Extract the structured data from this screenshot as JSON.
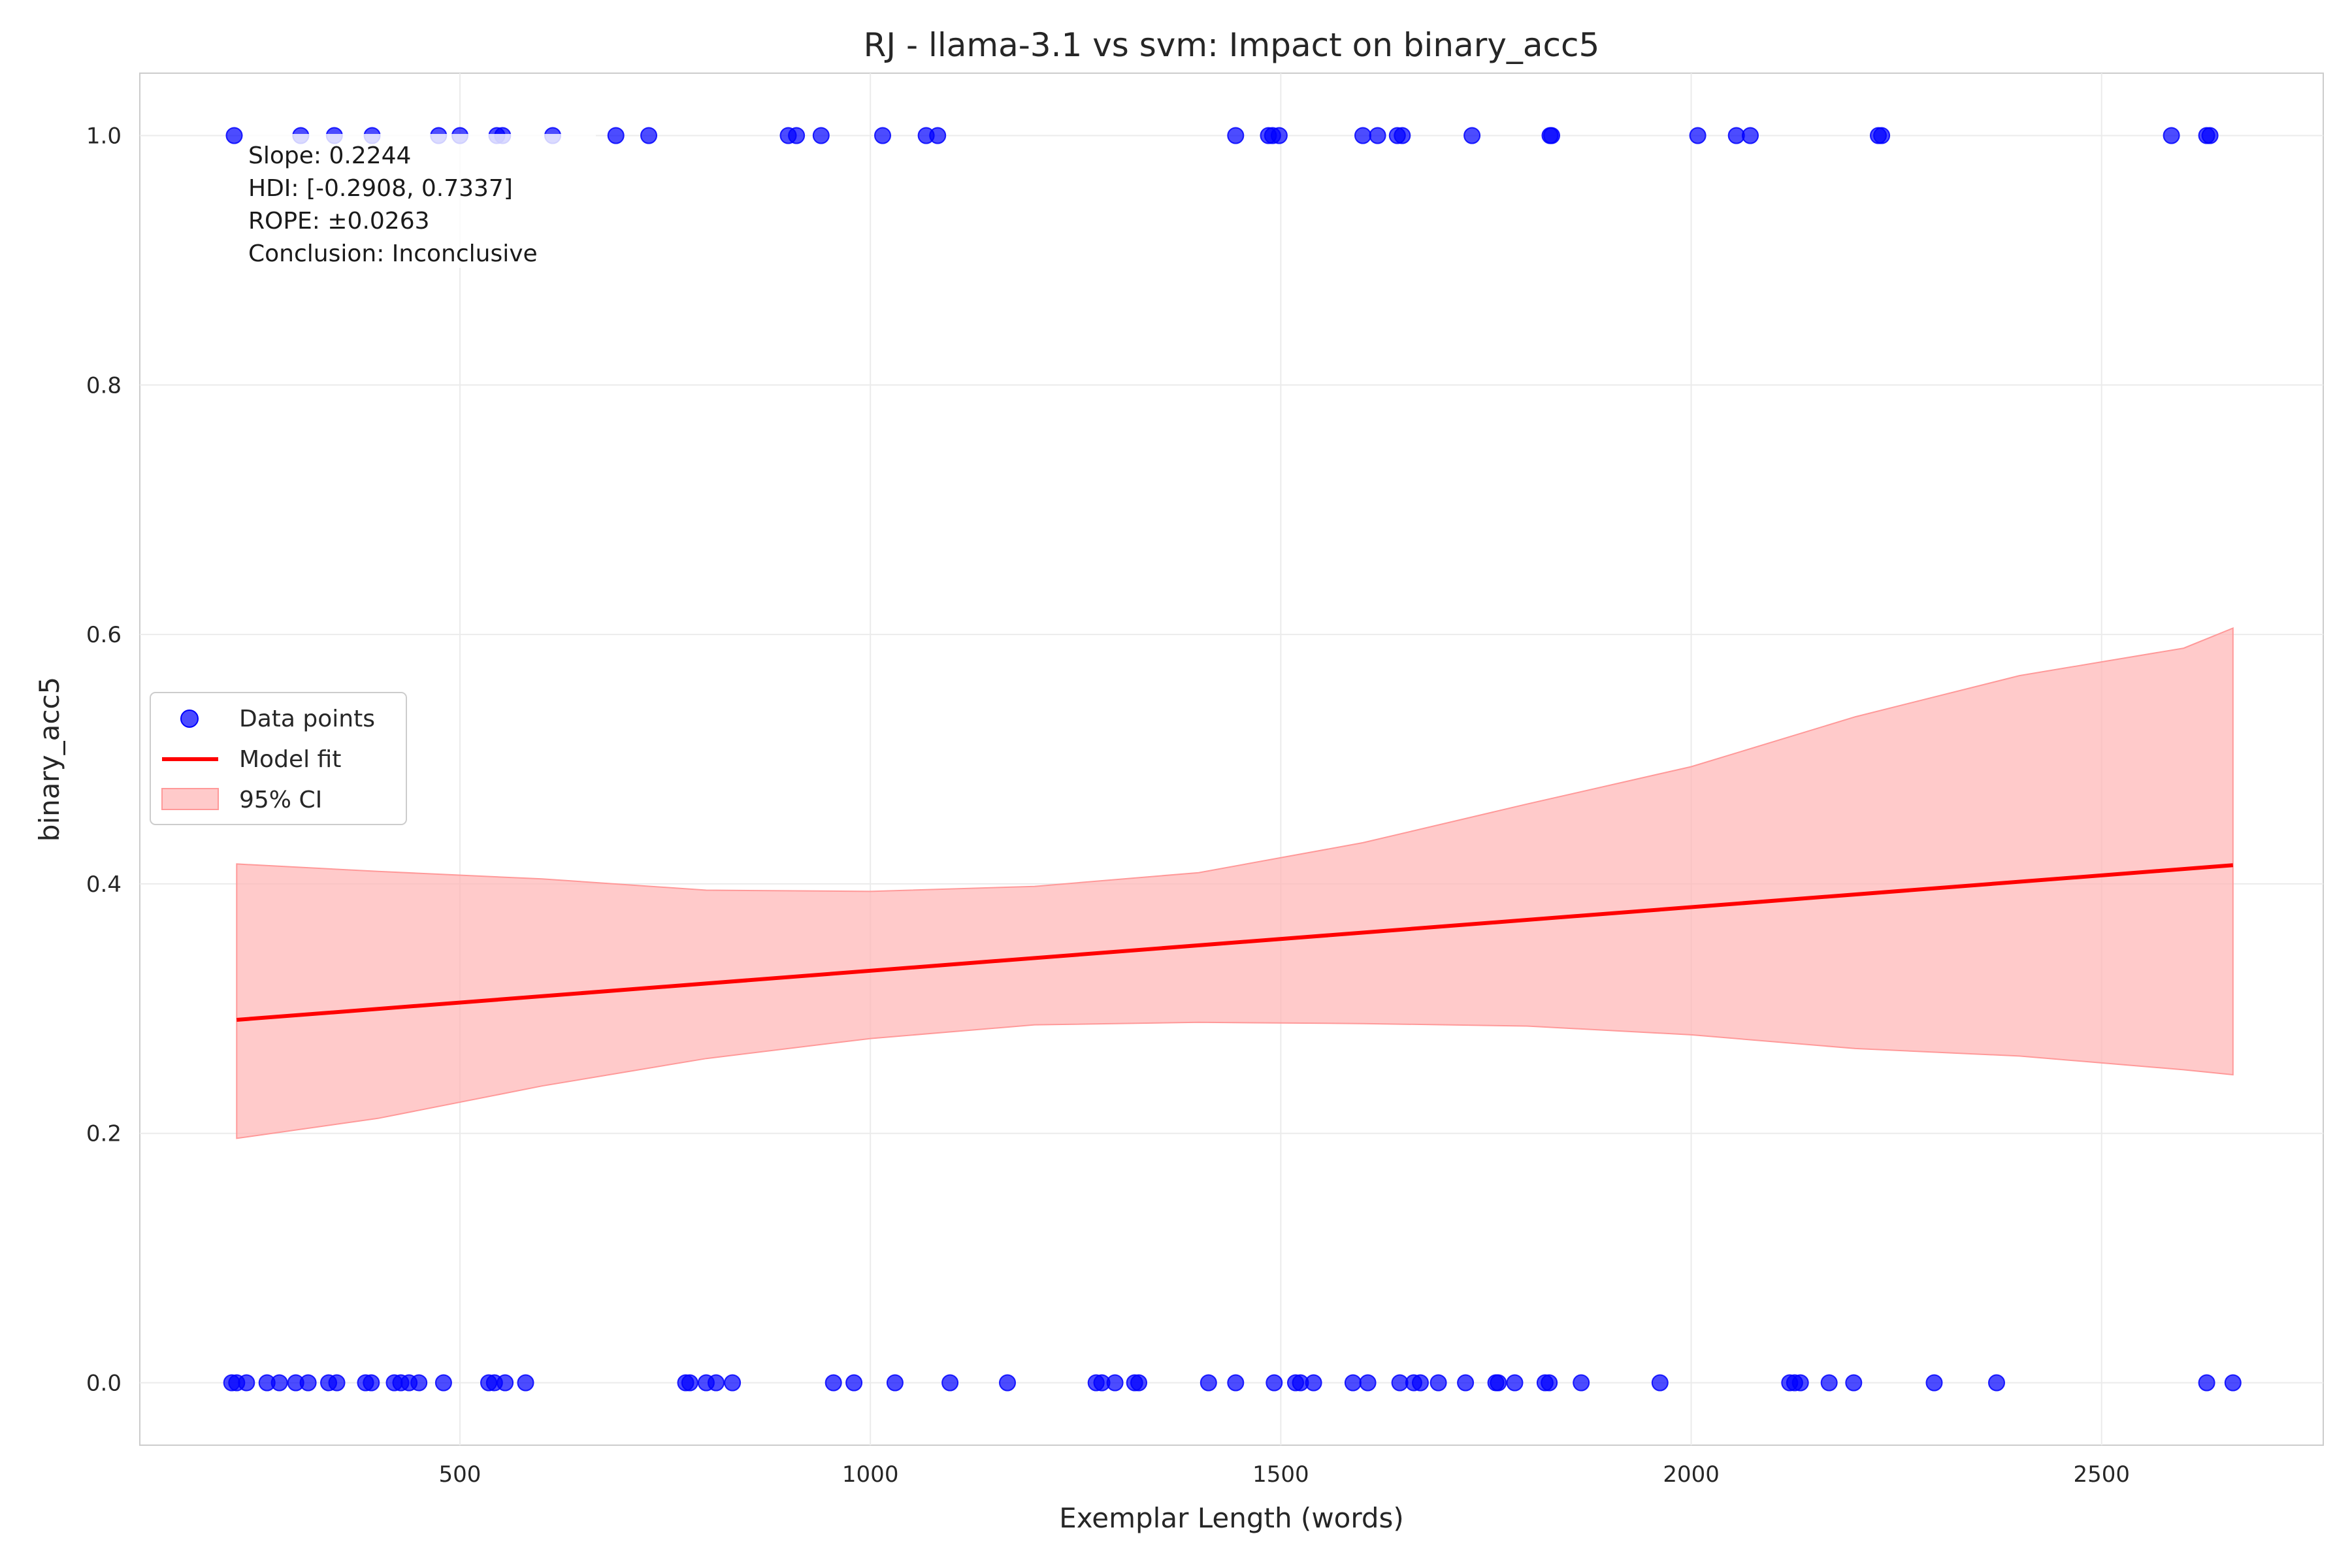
{
  "chart_data": {
    "type": "scatter",
    "title": "RJ - llama-3.1 vs svm: Impact on binary_acc5",
    "xlabel": "Exemplar Length (words)",
    "ylabel": "binary_acc5",
    "xlim": [
      110,
      2770
    ],
    "ylim": [
      -0.05,
      1.05
    ],
    "xticks": [
      500,
      1000,
      1500,
      2000,
      2500
    ],
    "yticks": [
      0.0,
      0.2,
      0.4,
      0.6,
      0.8,
      1.0
    ],
    "xtick_labels": [
      "500",
      "1000",
      "1500",
      "2000",
      "2500"
    ],
    "ytick_labels": [
      "0.0",
      "0.2",
      "0.4",
      "0.6",
      "0.8",
      "1.0"
    ],
    "grid": true,
    "legend_position": "center-left",
    "colors": {
      "points": "#0000ff",
      "fit": "#ff0000",
      "ci": "#ffb3b3"
    },
    "annotation": [
      "Slope: 0.2244",
      "HDI: [-0.2908, 0.7337]",
      "ROPE: ±0.0263",
      "Conclusion: Inconclusive"
    ],
    "series": [
      {
        "name": "Data points",
        "kind": "scatter",
        "points": [
          [
            225,
            1
          ],
          [
            306,
            1
          ],
          [
            347,
            1
          ],
          [
            393,
            1
          ],
          [
            474,
            1
          ],
          [
            500,
            1
          ],
          [
            545,
            1
          ],
          [
            552,
            1
          ],
          [
            613,
            1
          ],
          [
            690,
            1
          ],
          [
            730,
            1
          ],
          [
            900,
            1
          ],
          [
            910,
            1
          ],
          [
            940,
            1
          ],
          [
            1015,
            1
          ],
          [
            1068,
            1
          ],
          [
            1082,
            1
          ],
          [
            1445,
            1
          ],
          [
            1485,
            1
          ],
          [
            1490,
            1
          ],
          [
            1498,
            1
          ],
          [
            1600,
            1
          ],
          [
            1618,
            1
          ],
          [
            1642,
            1
          ],
          [
            1648,
            1
          ],
          [
            1733,
            1
          ],
          [
            1828,
            1
          ],
          [
            1830,
            1
          ],
          [
            2008,
            1
          ],
          [
            2055,
            1
          ],
          [
            2072,
            1
          ],
          [
            2228,
            1
          ],
          [
            2232,
            1
          ],
          [
            2585,
            1
          ],
          [
            2628,
            1
          ],
          [
            2632,
            1
          ],
          [
            222,
            0
          ],
          [
            228,
            0
          ],
          [
            240,
            0
          ],
          [
            265,
            0
          ],
          [
            280,
            0
          ],
          [
            300,
            0
          ],
          [
            315,
            0
          ],
          [
            340,
            0
          ],
          [
            350,
            0
          ],
          [
            385,
            0
          ],
          [
            392,
            0
          ],
          [
            420,
            0
          ],
          [
            428,
            0
          ],
          [
            438,
            0
          ],
          [
            450,
            0
          ],
          [
            480,
            0
          ],
          [
            535,
            0
          ],
          [
            542,
            0
          ],
          [
            555,
            0
          ],
          [
            580,
            0
          ],
          [
            775,
            0
          ],
          [
            780,
            0
          ],
          [
            800,
            0
          ],
          [
            812,
            0
          ],
          [
            832,
            0
          ],
          [
            955,
            0
          ],
          [
            980,
            0
          ],
          [
            1030,
            0
          ],
          [
            1097,
            0
          ],
          [
            1167,
            0
          ],
          [
            1275,
            0
          ],
          [
            1282,
            0
          ],
          [
            1298,
            0
          ],
          [
            1322,
            0
          ],
          [
            1327,
            0
          ],
          [
            1412,
            0
          ],
          [
            1445,
            0
          ],
          [
            1492,
            0
          ],
          [
            1518,
            0
          ],
          [
            1524,
            0
          ],
          [
            1540,
            0
          ],
          [
            1588,
            0
          ],
          [
            1606,
            0
          ],
          [
            1645,
            0
          ],
          [
            1662,
            0
          ],
          [
            1670,
            0
          ],
          [
            1692,
            0
          ],
          [
            1725,
            0
          ],
          [
            1762,
            0
          ],
          [
            1765,
            0
          ],
          [
            1785,
            0
          ],
          [
            1822,
            0
          ],
          [
            1827,
            0
          ],
          [
            1866,
            0
          ],
          [
            1962,
            0
          ],
          [
            2120,
            0
          ],
          [
            2126,
            0
          ],
          [
            2133,
            0
          ],
          [
            2168,
            0
          ],
          [
            2198,
            0
          ],
          [
            2296,
            0
          ],
          [
            2372,
            0
          ],
          [
            2628,
            0
          ],
          [
            2660,
            0
          ]
        ]
      },
      {
        "name": "Model fit",
        "kind": "line",
        "x": [
          228,
          2660
        ],
        "y": [
          0.291,
          0.415
        ]
      },
      {
        "name": "95% CI",
        "kind": "band",
        "x": [
          228,
          400,
          600,
          800,
          1000,
          1200,
          1400,
          1600,
          1800,
          2000,
          2200,
          2400,
          2600,
          2660
        ],
        "lower": [
          0.196,
          0.212,
          0.238,
          0.26,
          0.276,
          0.287,
          0.289,
          0.288,
          0.286,
          0.279,
          0.268,
          0.262,
          0.251,
          0.247
        ],
        "upper": [
          0.416,
          0.41,
          0.404,
          0.395,
          0.394,
          0.398,
          0.409,
          0.433,
          0.464,
          0.494,
          0.534,
          0.567,
          0.589,
          0.605
        ]
      }
    ]
  }
}
